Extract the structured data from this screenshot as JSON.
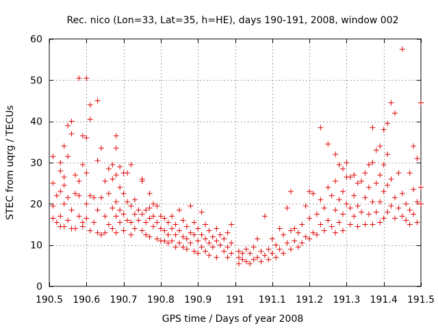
{
  "chart_data": {
    "type": "scatter",
    "title": "Rec. nico (Lon=33, Lat=35, h=HE), days 190-191, 2008, window 002",
    "xlabel": "GPS time / Days of year 2008",
    "ylabel": "STEC from uqrg / TECUs",
    "xlim": [
      190.5,
      191.5
    ],
    "ylim": [
      0,
      60
    ],
    "grid": true,
    "marker": "plus",
    "color": "#e00000",
    "x_tick_labels": [
      "190.5",
      "190.6",
      "190.7",
      "190.8",
      "190.9",
      "191",
      "191.1",
      "191.2",
      "191.3",
      "191.4",
      "191.5"
    ],
    "y_tick_labels": [
      "0",
      "10",
      "20",
      "30",
      "40",
      "50",
      "60"
    ],
    "x_ticks": [
      190.5,
      190.6,
      190.7,
      190.8,
      190.9,
      191.0,
      191.1,
      191.2,
      191.3,
      191.4,
      191.5
    ],
    "y_ticks": [
      0,
      10,
      20,
      30,
      40,
      50,
      60
    ],
    "series": [
      {
        "name": "STEC",
        "points": [
          [
            190.51,
            31.5
          ],
          [
            190.51,
            25.0
          ],
          [
            190.51,
            19.5
          ],
          [
            190.51,
            16.5
          ],
          [
            190.52,
            15.5
          ],
          [
            190.52,
            22.0
          ],
          [
            190.53,
            30.0
          ],
          [
            190.53,
            28.0
          ],
          [
            190.53,
            23.0
          ],
          [
            190.53,
            17.0
          ],
          [
            190.53,
            14.5
          ],
          [
            190.54,
            34.0
          ],
          [
            190.54,
            26.5
          ],
          [
            190.54,
            24.5
          ],
          [
            190.54,
            20.0
          ],
          [
            190.54,
            14.5
          ],
          [
            190.55,
            39.0
          ],
          [
            190.55,
            31.5
          ],
          [
            190.55,
            21.5
          ],
          [
            190.55,
            16.0
          ],
          [
            190.56,
            18.5
          ],
          [
            190.56,
            14.0
          ],
          [
            190.56,
            37.0
          ],
          [
            190.56,
            40.0
          ],
          [
            190.57,
            27.0
          ],
          [
            190.57,
            22.5
          ],
          [
            190.57,
            14.0
          ],
          [
            190.58,
            50.5
          ],
          [
            190.58,
            25.5
          ],
          [
            190.58,
            22.0
          ],
          [
            190.58,
            17.0
          ],
          [
            190.59,
            15.5
          ],
          [
            190.59,
            14.5
          ],
          [
            190.59,
            36.5
          ],
          [
            190.59,
            29.5
          ],
          [
            190.6,
            50.5
          ],
          [
            190.6,
            36.0
          ],
          [
            190.6,
            27.5
          ],
          [
            190.6,
            20.0
          ],
          [
            190.6,
            16.5
          ],
          [
            190.61,
            13.5
          ],
          [
            190.61,
            44.0
          ],
          [
            190.61,
            40.5
          ],
          [
            190.61,
            22.0
          ],
          [
            190.62,
            15.5
          ],
          [
            190.62,
            21.5
          ],
          [
            190.63,
            45.0
          ],
          [
            190.63,
            30.5
          ],
          [
            190.63,
            18.5
          ],
          [
            190.63,
            13.0
          ],
          [
            190.64,
            12.5
          ],
          [
            190.64,
            21.5
          ],
          [
            190.64,
            33.5
          ],
          [
            190.65,
            25.5
          ],
          [
            190.65,
            17.0
          ],
          [
            190.65,
            13.0
          ],
          [
            190.66,
            28.5
          ],
          [
            190.66,
            22.5
          ],
          [
            190.66,
            15.0
          ],
          [
            190.67,
            29.5
          ],
          [
            190.67,
            26.0
          ],
          [
            190.67,
            19.0
          ],
          [
            190.67,
            14.0
          ],
          [
            190.68,
            36.5
          ],
          [
            190.68,
            33.5
          ],
          [
            190.68,
            27.0
          ],
          [
            190.68,
            20.5
          ],
          [
            190.68,
            17.0
          ],
          [
            190.68,
            13.0
          ],
          [
            190.69,
            29.0
          ],
          [
            190.69,
            24.0
          ],
          [
            190.69,
            18.5
          ],
          [
            190.69,
            15.5
          ],
          [
            190.7,
            27.5
          ],
          [
            190.7,
            22.5
          ],
          [
            190.7,
            17.5
          ],
          [
            190.7,
            13.5
          ],
          [
            190.71,
            27.5
          ],
          [
            190.71,
            20.5
          ],
          [
            190.71,
            16.0
          ],
          [
            190.72,
            29.5
          ],
          [
            190.72,
            19.5
          ],
          [
            190.72,
            15.5
          ],
          [
            190.72,
            12.5
          ],
          [
            190.73,
            21.0
          ],
          [
            190.73,
            17.5
          ],
          [
            190.73,
            14.0
          ],
          [
            190.74,
            18.5
          ],
          [
            190.74,
            16.0
          ],
          [
            190.75,
            26.0
          ],
          [
            190.75,
            25.5
          ],
          [
            190.75,
            17.5
          ],
          [
            190.75,
            13.5
          ],
          [
            190.76,
            18.5
          ],
          [
            190.76,
            15.5
          ],
          [
            190.76,
            12.5
          ],
          [
            190.77,
            22.5
          ],
          [
            190.77,
            19.0
          ],
          [
            190.77,
            16.5
          ],
          [
            190.77,
            12.0
          ],
          [
            190.78,
            20.0
          ],
          [
            190.78,
            17.0
          ],
          [
            190.78,
            14.5
          ],
          [
            190.79,
            19.5
          ],
          [
            190.79,
            15.5
          ],
          [
            190.79,
            11.5
          ],
          [
            190.8,
            17.0
          ],
          [
            190.8,
            14.0
          ],
          [
            190.8,
            11.0
          ],
          [
            190.81,
            16.5
          ],
          [
            190.81,
            13.5
          ],
          [
            190.81,
            11.0
          ],
          [
            190.82,
            15.5
          ],
          [
            190.82,
            12.5
          ],
          [
            190.82,
            10.5
          ],
          [
            190.83,
            17.0
          ],
          [
            190.83,
            14.0
          ],
          [
            190.83,
            11.0
          ],
          [
            190.84,
            15.0
          ],
          [
            190.84,
            12.5
          ],
          [
            190.84,
            9.5
          ],
          [
            190.85,
            18.5
          ],
          [
            190.85,
            13.5
          ],
          [
            190.85,
            10.5
          ],
          [
            190.86,
            16.0
          ],
          [
            190.86,
            12.0
          ],
          [
            190.86,
            9.5
          ],
          [
            190.87,
            14.5
          ],
          [
            190.87,
            11.5
          ],
          [
            190.87,
            9.0
          ],
          [
            190.88,
            19.5
          ],
          [
            190.88,
            13.0
          ],
          [
            190.88,
            10.5
          ],
          [
            190.89,
            15.5
          ],
          [
            190.89,
            12.5
          ],
          [
            190.89,
            8.5
          ],
          [
            190.9,
            14.0
          ],
          [
            190.9,
            11.0
          ],
          [
            190.9,
            8.0
          ],
          [
            190.91,
            18.0
          ],
          [
            190.91,
            12.5
          ],
          [
            190.91,
            9.5
          ],
          [
            190.92,
            15.0
          ],
          [
            190.92,
            11.5
          ],
          [
            190.92,
            8.5
          ],
          [
            190.93,
            13.5
          ],
          [
            190.93,
            10.5
          ],
          [
            190.93,
            7.5
          ],
          [
            190.94,
            12.0
          ],
          [
            190.94,
            9.5
          ],
          [
            190.95,
            14.0
          ],
          [
            190.95,
            11.0
          ],
          [
            190.95,
            7.0
          ],
          [
            190.96,
            12.5
          ],
          [
            190.96,
            10.0
          ],
          [
            190.97,
            11.5
          ],
          [
            190.97,
            8.5
          ],
          [
            190.98,
            13.0
          ],
          [
            190.98,
            9.5
          ],
          [
            190.98,
            7.0
          ],
          [
            190.99,
            15.0
          ],
          [
            190.99,
            10.5
          ],
          [
            190.99,
            8.0
          ],
          [
            191.01,
            8.5
          ],
          [
            191.01,
            7.0
          ],
          [
            191.01,
            5.5
          ],
          [
            191.02,
            8.0
          ],
          [
            191.02,
            6.5
          ],
          [
            191.03,
            9.0
          ],
          [
            191.03,
            6.0
          ],
          [
            191.04,
            8.0
          ],
          [
            191.04,
            5.5
          ],
          [
            191.05,
            9.5
          ],
          [
            191.05,
            6.5
          ],
          [
            191.06,
            11.5
          ],
          [
            191.06,
            7.0
          ],
          [
            191.07,
            8.5
          ],
          [
            191.07,
            6.0
          ],
          [
            191.08,
            17.0
          ],
          [
            191.08,
            7.5
          ],
          [
            191.09,
            9.0
          ],
          [
            191.09,
            6.5
          ],
          [
            191.1,
            11.5
          ],
          [
            191.1,
            8.0
          ],
          [
            191.11,
            10.0
          ],
          [
            191.11,
            7.0
          ],
          [
            191.12,
            14.0
          ],
          [
            191.12,
            9.0
          ],
          [
            191.13,
            12.5
          ],
          [
            191.13,
            8.0
          ],
          [
            191.14,
            19.0
          ],
          [
            191.14,
            10.5
          ],
          [
            191.15,
            23.0
          ],
          [
            191.15,
            13.5
          ],
          [
            191.15,
            9.0
          ],
          [
            191.16,
            14.0
          ],
          [
            191.16,
            11.0
          ],
          [
            191.17,
            13.0
          ],
          [
            191.17,
            9.5
          ],
          [
            191.18,
            15.0
          ],
          [
            191.18,
            10.5
          ],
          [
            191.19,
            19.5
          ],
          [
            191.19,
            12.0
          ],
          [
            191.2,
            23.0
          ],
          [
            191.2,
            16.5
          ],
          [
            191.2,
            11.5
          ],
          [
            191.21,
            22.5
          ],
          [
            191.21,
            13.0
          ],
          [
            191.22,
            17.5
          ],
          [
            191.22,
            12.5
          ],
          [
            191.23,
            38.5
          ],
          [
            191.23,
            21.0
          ],
          [
            191.23,
            15.0
          ],
          [
            191.24,
            19.0
          ],
          [
            191.24,
            13.5
          ],
          [
            191.25,
            34.5
          ],
          [
            191.25,
            24.0
          ],
          [
            191.25,
            16.0
          ],
          [
            191.26,
            22.0
          ],
          [
            191.26,
            14.5
          ],
          [
            191.27,
            32.0
          ],
          [
            191.27,
            25.5
          ],
          [
            191.27,
            18.5
          ],
          [
            191.27,
            13.0
          ],
          [
            191.28,
            29.5
          ],
          [
            191.28,
            21.0
          ],
          [
            191.28,
            15.5
          ],
          [
            191.29,
            28.5
          ],
          [
            191.29,
            23.0
          ],
          [
            191.29,
            17.5
          ],
          [
            191.29,
            13.5
          ],
          [
            191.3,
            30.0
          ],
          [
            191.3,
            26.5
          ],
          [
            191.3,
            20.0
          ],
          [
            191.31,
            26.5
          ],
          [
            191.31,
            19.0
          ],
          [
            191.31,
            15.0
          ],
          [
            191.32,
            27.0
          ],
          [
            191.32,
            22.0
          ],
          [
            191.32,
            17.0
          ],
          [
            191.33,
            25.0
          ],
          [
            191.33,
            19.5
          ],
          [
            191.33,
            14.5
          ],
          [
            191.34,
            25.5
          ],
          [
            191.34,
            18.0
          ],
          [
            191.35,
            27.5
          ],
          [
            191.35,
            21.5
          ],
          [
            191.35,
            15.0
          ],
          [
            191.36,
            29.5
          ],
          [
            191.36,
            24.0
          ],
          [
            191.36,
            17.5
          ],
          [
            191.37,
            38.5
          ],
          [
            191.37,
            30.0
          ],
          [
            191.37,
            20.5
          ],
          [
            191.37,
            15.0
          ],
          [
            191.38,
            33.0
          ],
          [
            191.38,
            25.0
          ],
          [
            191.38,
            18.0
          ],
          [
            191.39,
            34.0
          ],
          [
            191.39,
            27.0
          ],
          [
            191.39,
            20.5
          ],
          [
            191.39,
            15.5
          ],
          [
            191.4,
            38.0
          ],
          [
            191.4,
            29.5
          ],
          [
            191.4,
            23.0
          ],
          [
            191.4,
            16.5
          ],
          [
            191.41,
            39.5
          ],
          [
            191.41,
            32.0
          ],
          [
            191.41,
            24.5
          ],
          [
            191.41,
            18.0
          ],
          [
            191.42,
            44.5
          ],
          [
            191.42,
            26.0
          ],
          [
            191.42,
            19.5
          ],
          [
            191.43,
            42.0
          ],
          [
            191.43,
            21.5
          ],
          [
            191.43,
            16.5
          ],
          [
            191.44,
            27.5
          ],
          [
            191.44,
            19.0
          ],
          [
            191.45,
            57.5
          ],
          [
            191.45,
            22.5
          ],
          [
            191.45,
            17.0
          ],
          [
            191.46,
            20.0
          ],
          [
            191.46,
            16.0
          ],
          [
            191.47,
            27.5
          ],
          [
            191.47,
            18.5
          ],
          [
            191.47,
            15.0
          ],
          [
            191.48,
            34.0
          ],
          [
            191.48,
            23.5
          ],
          [
            191.48,
            17.5
          ],
          [
            191.49,
            31.0
          ],
          [
            191.49,
            20.5
          ],
          [
            191.49,
            15.5
          ],
          [
            191.5,
            44.5
          ],
          [
            191.5,
            24.0
          ],
          [
            191.5,
            20.0
          ]
        ]
      }
    ]
  }
}
